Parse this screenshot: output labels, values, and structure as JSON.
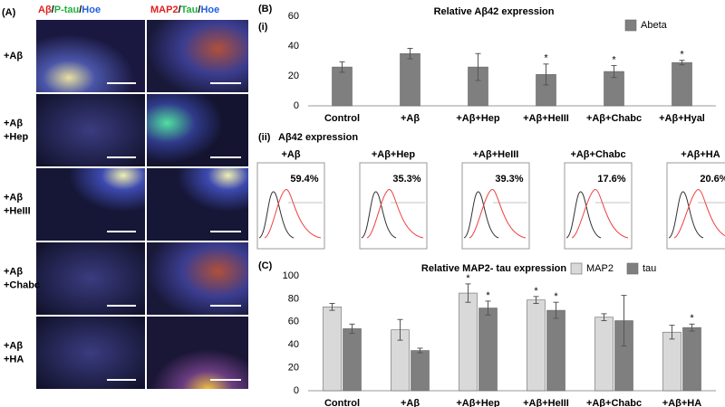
{
  "panel_a": {
    "label": "(A)",
    "headers": [
      [
        "Aβ",
        "/",
        "P-tau",
        "/",
        "Hoe"
      ],
      [
        "MAP2",
        "/",
        "Tau",
        "/",
        "Hoe"
      ]
    ],
    "rows": [
      [
        "+Aβ"
      ],
      [
        "+Aβ",
        "+Hep"
      ],
      [
        "+Aβ",
        "+HeIII"
      ],
      [
        "+Aβ",
        "+Chabc"
      ],
      [
        "+Aβ",
        "+HA"
      ]
    ]
  },
  "panel_labels": {
    "b": "(B)",
    "i": "(i)",
    "ii": "(ii)",
    "c": "(C)"
  },
  "flow": {
    "title": "Aβ42 expression",
    "panels": [
      {
        "title": "+Aβ",
        "percent": "59.4%"
      },
      {
        "title": "+Aβ+Hep",
        "percent": "35.3%"
      },
      {
        "title": "+Aβ+HeIII",
        "percent": "39.3%"
      },
      {
        "title": "+Aβ+Chabc",
        "percent": "17.6%"
      },
      {
        "title": "+Aβ+HA",
        "percent": "20.6%"
      }
    ]
  },
  "chart_data": [
    {
      "type": "bar",
      "title": "Relative Aβ42 expression",
      "categories": [
        "Control",
        "+Aβ",
        "+Aβ+Hep",
        "+Aβ+HeIII",
        "+Aβ+Chabc",
        "+Aβ+Hyal"
      ],
      "series": [
        {
          "name": "Abeta",
          "color": "#7f7f7f",
          "values": [
            26,
            35,
            26,
            21,
            23,
            29
          ],
          "errors": [
            3.5,
            3.5,
            9,
            7,
            4,
            1.5
          ],
          "significance": [
            null,
            null,
            null,
            "*",
            "*",
            "*"
          ]
        }
      ],
      "ylim": [
        0,
        60
      ],
      "yticks": [
        0,
        20,
        40,
        60
      ],
      "legend": "top-right"
    },
    {
      "type": "bar",
      "title": "Relative MAP2- tau expression",
      "categories": [
        "Control",
        "+Aβ",
        "+Aβ+Hep",
        "+Aβ+HeIII",
        "+Aβ+Chabc",
        "+Aβ+HA"
      ],
      "series": [
        {
          "name": "MAP2",
          "color": "#d9d9d9",
          "values": [
            73,
            53,
            85,
            79,
            64,
            51
          ],
          "errors": [
            3,
            9,
            8,
            3,
            3,
            6
          ],
          "significance": [
            null,
            null,
            "*",
            "*",
            null,
            null
          ]
        },
        {
          "name": "tau",
          "color": "#7f7f7f",
          "values": [
            54,
            35,
            72,
            70,
            61,
            55
          ],
          "errors": [
            4,
            2,
            6,
            7,
            22,
            3
          ],
          "significance": [
            null,
            null,
            "*",
            "*",
            null,
            "*"
          ]
        }
      ],
      "ylim": [
        0,
        100
      ],
      "yticks": [
        0,
        20,
        40,
        60,
        80,
        100
      ],
      "legend": "top-right"
    }
  ]
}
